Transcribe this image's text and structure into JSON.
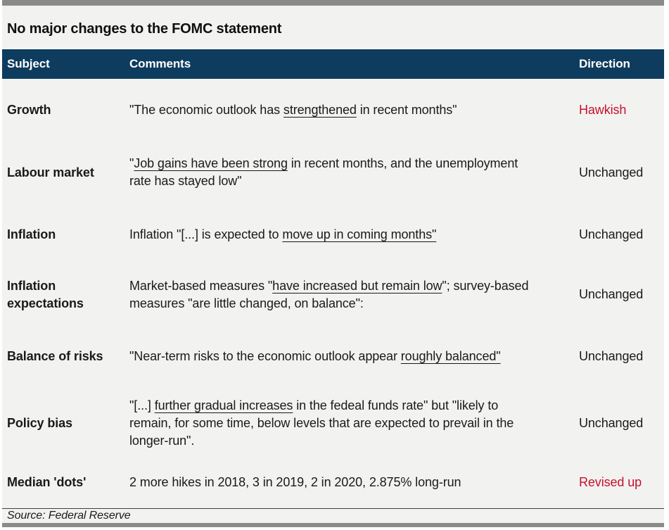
{
  "title": "No major changes to the FOMC statement",
  "source": "Source: Federal Reserve",
  "colors": {
    "header_bg": "#0e3c5e",
    "accent_red": "#c6112e",
    "bar_gray": "#8a8a8a",
    "sheet_bg": "#f2f2f0",
    "text": "#1a1a1a"
  },
  "table": {
    "columns": [
      "Subject",
      "Comments",
      "Direction"
    ],
    "rows": [
      {
        "subject": "Growth",
        "comments": [
          {
            "text": "\"The economic outlook has ",
            "underline": false
          },
          {
            "text": "strengthened",
            "underline": true
          },
          {
            "text": " in recent months\"",
            "underline": false
          }
        ],
        "direction": "Hawkish",
        "direction_highlight": true
      },
      {
        "subject": "Labour market",
        "comments": [
          {
            "text": "\"",
            "underline": false
          },
          {
            "text": "Job gains have been strong",
            "underline": true
          },
          {
            "text": " in recent months, and the unemployment rate has stayed low\"",
            "underline": false
          }
        ],
        "direction": "Unchanged",
        "direction_highlight": false
      },
      {
        "subject": "Inflation",
        "comments": [
          {
            "text": "Inflation \"[...] is expected to ",
            "underline": false
          },
          {
            "text": "move up in coming months\"",
            "underline": true
          }
        ],
        "direction": "Unchanged",
        "direction_highlight": false
      },
      {
        "subject": "Inflation expectations",
        "comments": [
          {
            "text": "Market-based measures \"",
            "underline": false
          },
          {
            "text": "have increased but remain low",
            "underline": true
          },
          {
            "text": "\"; survey-based measures \"are little changed, on balance\":",
            "underline": false
          }
        ],
        "direction": "Unchanged",
        "direction_highlight": false
      },
      {
        "subject": "Balance of risks",
        "comments": [
          {
            "text": "\"Near-term risks to the economic outlook appear ",
            "underline": false
          },
          {
            "text": "roughly balanced\"",
            "underline": true
          }
        ],
        "direction": "Unchanged",
        "direction_highlight": false
      },
      {
        "subject": "Policy bias",
        "comments": [
          {
            "text": "\"[...] ",
            "underline": false
          },
          {
            "text": "further gradual increases",
            "underline": true
          },
          {
            "text": " in the fedeal funds rate\" but \"likely to remain, for some time, below levels that are expected to prevail in the longer-run\".",
            "underline": false
          }
        ],
        "direction": "Unchanged",
        "direction_highlight": false
      },
      {
        "subject": "Median 'dots'",
        "comments": [
          {
            "text": "2 more hikes in 2018, 3 in 2019, 2 in 2020, 2.875% long-run",
            "underline": false
          }
        ],
        "direction": "Revised up",
        "direction_highlight": true
      }
    ]
  }
}
